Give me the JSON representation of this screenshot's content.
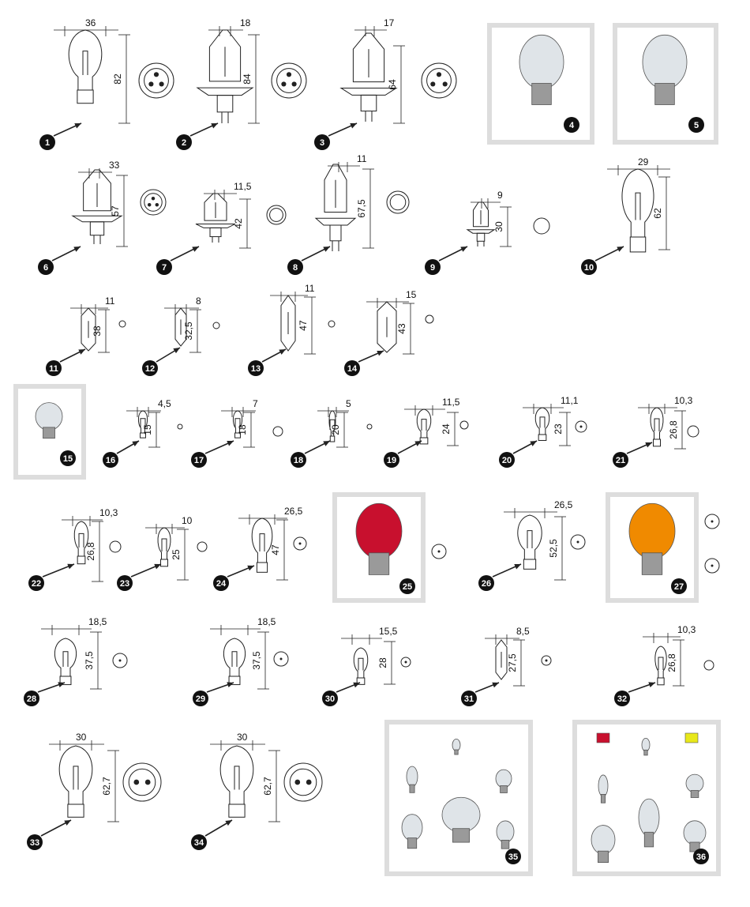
{
  "diagram": {
    "items": [
      {
        "n": "1",
        "dims": [
          "36",
          "82"
        ]
      },
      {
        "n": "2",
        "dims": [
          "18",
          "84"
        ]
      },
      {
        "n": "3",
        "dims": [
          "17",
          "64"
        ]
      },
      {
        "n": "4",
        "dims": []
      },
      {
        "n": "5",
        "dims": []
      },
      {
        "n": "6",
        "dims": [
          "33",
          "57"
        ]
      },
      {
        "n": "7",
        "dims": [
          "11,5",
          "42"
        ]
      },
      {
        "n": "8",
        "dims": [
          "11",
          "67,5"
        ]
      },
      {
        "n": "9",
        "dims": [
          "9",
          "30"
        ]
      },
      {
        "n": "10",
        "dims": [
          "29",
          "62"
        ]
      },
      {
        "n": "11",
        "dims": [
          "11",
          "38"
        ]
      },
      {
        "n": "12",
        "dims": [
          "8",
          "32,5"
        ]
      },
      {
        "n": "13",
        "dims": [
          "11",
          "47"
        ]
      },
      {
        "n": "14",
        "dims": [
          "15",
          "43"
        ]
      },
      {
        "n": "15",
        "dims": []
      },
      {
        "n": "16",
        "dims": [
          "4,5",
          "15"
        ]
      },
      {
        "n": "17",
        "dims": [
          "7",
          "18"
        ]
      },
      {
        "n": "18",
        "dims": [
          "5",
          "20"
        ]
      },
      {
        "n": "19",
        "dims": [
          "11,5",
          "24"
        ]
      },
      {
        "n": "20",
        "dims": [
          "11,1",
          "23"
        ]
      },
      {
        "n": "21",
        "dims": [
          "10,3",
          "26,8"
        ]
      },
      {
        "n": "22",
        "dims": [
          "10,3",
          "26,8"
        ]
      },
      {
        "n": "23",
        "dims": [
          "10",
          "25"
        ]
      },
      {
        "n": "24",
        "dims": [
          "26,5",
          "47"
        ]
      },
      {
        "n": "25",
        "dims": []
      },
      {
        "n": "26",
        "dims": [
          "26,5",
          "52,5"
        ]
      },
      {
        "n": "27",
        "dims": []
      },
      {
        "n": "28",
        "dims": [
          "18,5",
          "37,5"
        ]
      },
      {
        "n": "29",
        "dims": [
          "18,5",
          "37,5"
        ]
      },
      {
        "n": "30",
        "dims": [
          "15,5",
          "28"
        ]
      },
      {
        "n": "31",
        "dims": [
          "8,5",
          "27,5"
        ]
      },
      {
        "n": "32",
        "dims": [
          "10,3",
          "26,8"
        ]
      },
      {
        "n": "33",
        "dims": [
          "30",
          "62,7"
        ]
      },
      {
        "n": "34",
        "dims": [
          "30",
          "62,7"
        ]
      },
      {
        "n": "35",
        "dims": []
      },
      {
        "n": "36",
        "dims": []
      }
    ]
  },
  "colors": {
    "ink": "#222222",
    "badge": "#111111",
    "frame": "#dddddd",
    "red_bulb": "#c8102e",
    "amber_bulb": "#f08a00",
    "chrome": "#9a9a9a",
    "glass": "#dfe4e8",
    "fuse_red": "#c8102e",
    "fuse_yellow": "#e8e81a"
  }
}
